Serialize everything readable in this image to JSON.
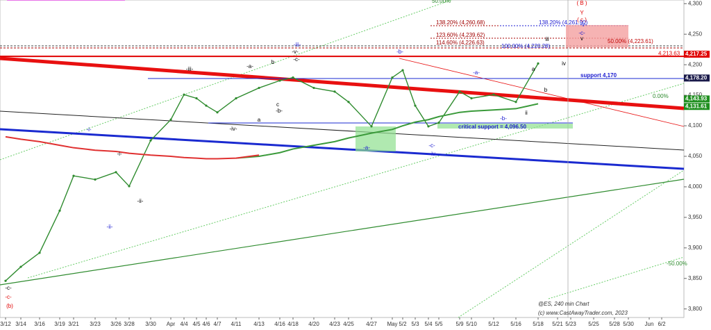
{
  "chart_data": {
    "type": "line",
    "categories": [
      "3/12",
      "3/14",
      "3/16",
      "3/19",
      "3/21",
      "3/23",
      "3/26",
      "3/28",
      "3/30",
      "Apr",
      "4/4",
      "4/5",
      "4/6",
      "4/7",
      "4/11",
      "4/13",
      "4/16",
      "4/18",
      "4/20",
      "4/23",
      "4/25",
      "4/27",
      "May",
      "5/2",
      "5/3",
      "5/4",
      "5/5",
      "5/9",
      "5/10",
      "5/12",
      "5/16",
      "5/18",
      "5/21",
      "5/23",
      "5/25",
      "5/28",
      "5/30",
      "Jun",
      "6/2"
    ],
    "series": [
      {
        "color": "#2e8b2e",
        "values": [
          3846,
          3869,
          3892,
          3961,
          4018,
          4012,
          4024,
          4001,
          4076,
          4110,
          4151,
          4145,
          4133,
          4122,
          4145,
          4162,
          4174,
          4179,
          4162,
          4156,
          4139,
          4099,
          4179,
          4191,
          4133,
          4099,
          4105,
          4156,
          4145,
          4151,
          4139,
          4202,
          null,
          null,
          null,
          null,
          null,
          null,
          null
        ]
      },
      {
        "color": "#3a9a3a",
        "values": [
          null,
          null,
          null,
          null,
          null,
          null,
          null,
          null,
          null,
          null,
          null,
          null,
          null,
          null,
          4047,
          4050,
          4056,
          4062,
          4068,
          4074,
          4080,
          4088,
          4094,
          4100,
          4106,
          4110,
          4115,
          4122,
          4124,
          4126,
          4128,
          4136,
          null,
          null,
          null,
          null,
          null,
          null,
          null
        ]
      },
      {
        "color": "#e03030",
        "values": [
          4082,
          4078,
          4074,
          4068,
          4064,
          4060,
          4058,
          4055,
          4052,
          4050,
          4048,
          4047,
          4046,
          4046,
          4047,
          4052,
          null,
          null,
          null,
          null,
          null,
          null,
          null,
          null,
          null,
          null,
          null,
          null,
          null,
          null,
          null,
          null,
          null,
          null,
          null,
          null,
          null,
          null,
          null
        ]
      }
    ],
    "ylim": [
      3786,
      4306
    ],
    "yticks": [
      {
        "value": 3800,
        "label": "3,800"
      },
      {
        "value": 3850,
        "label": "3,850"
      },
      {
        "value": 3900,
        "label": "3,900"
      },
      {
        "value": 3950,
        "label": "3,950"
      },
      {
        "value": 4000,
        "label": "4,000"
      },
      {
        "value": 4050,
        "label": "4,050"
      },
      {
        "value": 4100,
        "label": "4,100"
      },
      {
        "value": 4150,
        "label": "4,150"
      },
      {
        "value": 4200,
        "label": "4,200"
      },
      {
        "value": 4250,
        "label": "4,250"
      },
      {
        "value": 4300,
        "label": "4,300"
      }
    ],
    "price_labels": [
      {
        "value": 4217.25,
        "label": "4,217.25",
        "color": "#e00000"
      },
      {
        "value": 4178.2,
        "label": "4,178.20",
        "color": "#1a1a4a"
      },
      {
        "value": 4143.93,
        "label": "4,143.93",
        "color": "#1f8f1f"
      },
      {
        "value": 4131.61,
        "label": "4,131.61",
        "color": "#1f8f1f"
      }
    ],
    "level_label": {
      "value": 4213.63,
      "label": "4,213.63",
      "color": "#e00000"
    },
    "annotations": [
      {
        "text": "-c-",
        "color": "#000"
      },
      {
        "text": "-c-",
        "color": "#e00000"
      },
      {
        "text": "(b)",
        "color": "#e00000"
      },
      {
        "text": "-i-",
        "color": "#1a1ad0"
      },
      {
        "text": "-ii-",
        "color": "#1a1ad0"
      },
      {
        "text": "-i-",
        "color": "#000"
      },
      {
        "text": "-ii-",
        "color": "#000"
      },
      {
        "text": "-iii-",
        "color": "#000"
      },
      {
        "text": "-a-",
        "color": "#000"
      },
      {
        "text": "b",
        "color": "#000"
      },
      {
        "text": "c",
        "color": "#000"
      },
      {
        "text": "-b-",
        "color": "#000"
      },
      {
        "text": "a",
        "color": "#000"
      },
      {
        "text": "-iv-",
        "color": "#000"
      },
      {
        "text": "-iii-",
        "color": "#1a1ad0"
      },
      {
        "text": "-v-",
        "color": "#000"
      },
      {
        "text": "-c-",
        "color": "#000"
      },
      {
        "text": "-b-",
        "color": "#1a1ad0"
      },
      {
        "text": "-a-",
        "color": "#1a1ad0"
      },
      {
        "text": "-a-",
        "color": "#1a1ad0"
      },
      {
        "text": "-b-",
        "color": "#1a1ad0"
      },
      {
        "text": "-c-",
        "color": "#1a1ad0"
      },
      {
        "text": "-iv-",
        "color": "#1a1ad0"
      },
      {
        "text": "b",
        "color": "#000"
      },
      {
        "text": "a",
        "color": "#000"
      },
      {
        "text": "ii",
        "color": "#000"
      },
      {
        "text": "iii",
        "color": "#000"
      },
      {
        "text": "iv",
        "color": "#000"
      },
      {
        "text": "( B )",
        "color": "#e00000"
      },
      {
        "text": "Y",
        "color": "#e00000"
      },
      {
        "text": "( c )",
        "color": "#e00000"
      },
      {
        "text": "-v-",
        "color": "#1a1ad0"
      },
      {
        "text": "-c-",
        "color": "#1a1ad0"
      },
      {
        "text": "v",
        "color": "#000"
      },
      {
        "text": "138.20% (4,260.68)",
        "color": "#a00000"
      },
      {
        "text": "123.60% (4,239.62)",
        "color": "#a00000"
      },
      {
        "text": "114.60% (4,226.63)",
        "color": "#a00000"
      },
      {
        "text": "100.00% (4,220.28)",
        "color": "#1a1ad0"
      },
      {
        "text": "138.20% (4,261.90)",
        "color": "#1a1ad0"
      },
      {
        "text": "50.00% (4,223.61)",
        "color": "#c00000"
      },
      {
        "text": "support 4,170",
        "color": "#1a1ad0"
      },
      {
        "text": "critical support = 4,096.50",
        "color": "#1a1ad0"
      },
      {
        "text": "@ES, 240 min Chart",
        "color": "#333"
      },
      {
        "text": "(c) www.CastAwayTrader.com, 2023",
        "color": "#333"
      },
      {
        "text": "0.00%",
        "color": "#2e8b2e"
      },
      {
        "text": "-50.00%",
        "color": "#2e8b2e"
      },
      {
        "text": "50.00%",
        "color": "#2e8b2e"
      }
    ]
  }
}
